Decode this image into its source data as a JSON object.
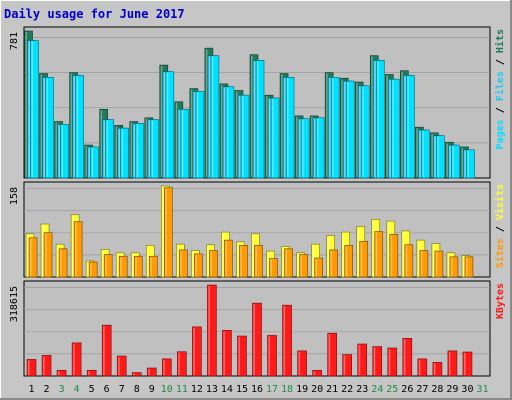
{
  "title": "Daily usage for June 2017",
  "colors": {
    "hits": "#1f7a5c",
    "files": "#20c8f0",
    "pages": "#00e0ff",
    "visits": "#ffff33",
    "sites": "#ff9a00",
    "kbytes": "#ff1a1a",
    "weekend_label": "#1f8a4a",
    "weekday_label": "#000000"
  },
  "chart_data": [
    {
      "type": "bar",
      "panel": "top",
      "ymax_label": "781",
      "ylim": [
        0,
        781
      ],
      "right_labels": [
        "Pages",
        "Files",
        "Hits"
      ],
      "categories": [
        "1",
        "2",
        "3",
        "4",
        "5",
        "6",
        "7",
        "8",
        "9",
        "10",
        "11",
        "12",
        "13",
        "14",
        "15",
        "16",
        "17",
        "18",
        "19",
        "20",
        "21",
        "22",
        "23",
        "24",
        "25",
        "26",
        "27",
        "28",
        "29",
        "30",
        "31"
      ],
      "series": [
        {
          "name": "Hits",
          "values": [
            781,
            555,
            300,
            560,
            175,
            365,
            280,
            300,
            320,
            600,
            405,
            475,
            690,
            500,
            465,
            655,
            440,
            555,
            330,
            330,
            560,
            530,
            510,
            650,
            550,
            570,
            270,
            240,
            190,
            165,
            0
          ]
        },
        {
          "name": "Files",
          "values": [
            730,
            535,
            285,
            545,
            165,
            310,
            265,
            290,
            310,
            565,
            365,
            460,
            650,
            485,
            440,
            625,
            425,
            535,
            315,
            320,
            535,
            515,
            490,
            625,
            525,
            545,
            255,
            225,
            175,
            150,
            0
          ]
        },
        {
          "name": "Pages",
          "values": [
            730,
            535,
            285,
            545,
            165,
            310,
            265,
            290,
            310,
            565,
            365,
            460,
            650,
            485,
            440,
            625,
            425,
            535,
            315,
            320,
            535,
            515,
            490,
            625,
            525,
            545,
            255,
            225,
            175,
            150,
            0
          ]
        }
      ]
    },
    {
      "type": "bar",
      "panel": "middle",
      "ymax_label": "158",
      "ylim": [
        0,
        158
      ],
      "right_labels": [
        "Sites",
        "Visits"
      ],
      "categories": [
        "1",
        "2",
        "3",
        "4",
        "5",
        "6",
        "7",
        "8",
        "9",
        "10",
        "11",
        "12",
        "13",
        "14",
        "15",
        "16",
        "17",
        "18",
        "19",
        "20",
        "21",
        "22",
        "23",
        "24",
        "25",
        "26",
        "27",
        "28",
        "29",
        "30",
        "31"
      ],
      "series": [
        {
          "name": "Visits",
          "values": [
            75,
            92,
            57,
            108,
            28,
            48,
            42,
            42,
            55,
            158,
            57,
            46,
            56,
            78,
            61,
            75,
            45,
            53,
            42,
            57,
            72,
            78,
            88,
            100,
            97,
            80,
            64,
            58,
            42,
            37,
            0
          ]
        },
        {
          "name": "Sites",
          "values": [
            68,
            77,
            49,
            96,
            26,
            39,
            36,
            36,
            36,
            155,
            47,
            40,
            46,
            64,
            55,
            55,
            32,
            49,
            39,
            33,
            47,
            55,
            62,
            79,
            74,
            56,
            46,
            45,
            35,
            35,
            0
          ]
        }
      ]
    },
    {
      "type": "bar",
      "panel": "bottom",
      "ymax_label": "318615",
      "ylim": [
        0,
        318615
      ],
      "right_labels": [
        "KBytes"
      ],
      "categories": [
        "1",
        "2",
        "3",
        "4",
        "5",
        "6",
        "7",
        "8",
        "9",
        "10",
        "11",
        "12",
        "13",
        "14",
        "15",
        "16",
        "17",
        "18",
        "19",
        "20",
        "21",
        "22",
        "23",
        "24",
        "25",
        "26",
        "27",
        "28",
        "29",
        "30",
        "31"
      ],
      "series": [
        {
          "name": "KBytes",
          "values": [
            58000,
            72000,
            20000,
            116000,
            20000,
            178000,
            70000,
            12000,
            28000,
            60000,
            85000,
            172000,
            318615,
            160000,
            140000,
            255000,
            142000,
            248000,
            88000,
            20000,
            150000,
            75000,
            112000,
            103000,
            98000,
            132000,
            60000,
            48000,
            88000,
            84000,
            0
          ]
        }
      ]
    }
  ],
  "x_axis": {
    "labels": [
      "1",
      "2",
      "3",
      "4",
      "5",
      "6",
      "7",
      "8",
      "9",
      "10",
      "11",
      "12",
      "13",
      "14",
      "15",
      "16",
      "17",
      "18",
      "19",
      "20",
      "21",
      "22",
      "23",
      "24",
      "25",
      "26",
      "27",
      "28",
      "29",
      "30",
      "31"
    ],
    "weekend_days": [
      3,
      4,
      10,
      11,
      17,
      18,
      24,
      25,
      31
    ]
  }
}
